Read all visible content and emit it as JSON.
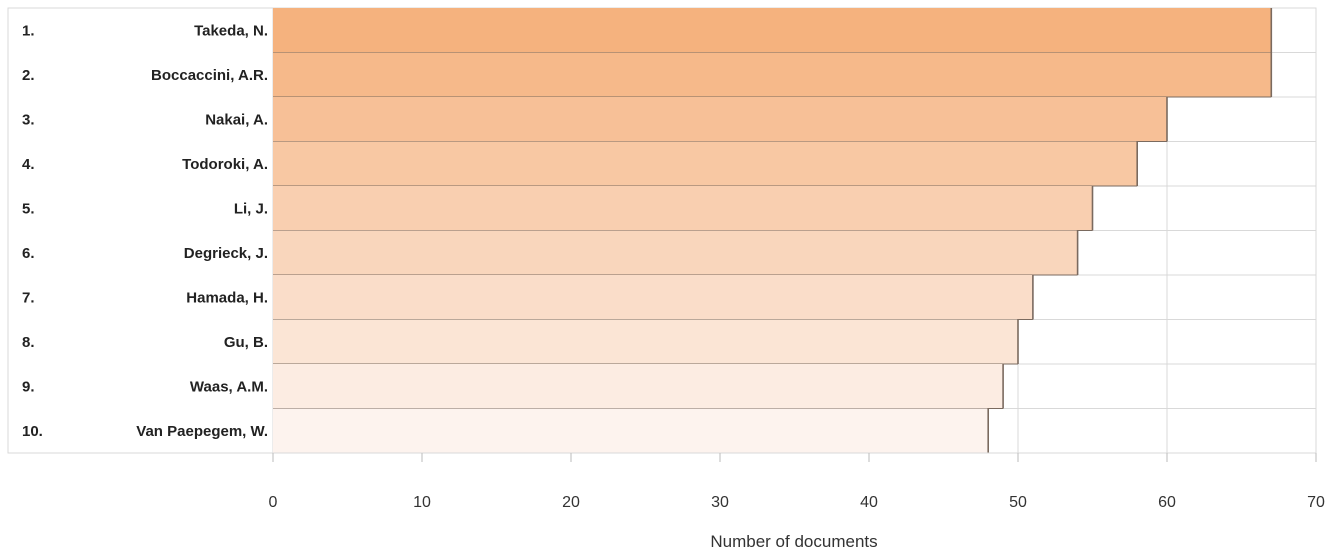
{
  "chart_data": {
    "type": "bar",
    "orientation": "horizontal",
    "ranks": [
      "1.",
      "2.",
      "3.",
      "4.",
      "5.",
      "6.",
      "7.",
      "8.",
      "9.",
      "10."
    ],
    "categories": [
      "Takeda, N.",
      "Boccaccini, A.R.",
      "Nakai, A.",
      "Todoroki, A.",
      "Li, J.",
      "Degrieck, J.",
      "Hamada, H.",
      "Gu, B.",
      "Waas, A.M.",
      "Van Paepegem, W."
    ],
    "values": [
      67,
      67,
      60,
      58,
      55,
      54,
      51,
      50,
      49,
      48
    ],
    "xlabel": "Number of documents",
    "ylabel": "",
    "xlim": [
      0,
      70
    ],
    "xticks": [
      0,
      10,
      20,
      30,
      40,
      50,
      60,
      70
    ],
    "grid": true,
    "colors": {
      "bar_dark": "#f5b27e",
      "bar_light": "#fdf3ee",
      "bar_outline": "#7a6a5f",
      "grid": "#d9d9d9"
    }
  }
}
